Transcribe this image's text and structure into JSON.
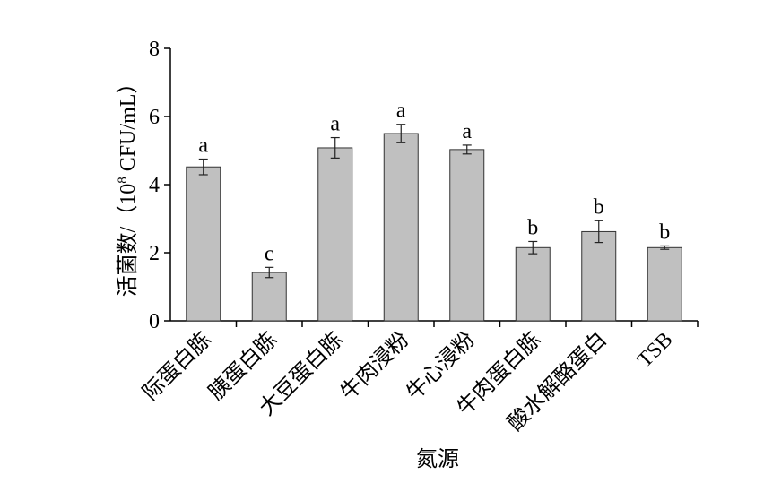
{
  "chart_data": {
    "type": "bar",
    "categories": [
      "际蛋白胨",
      "胰蛋白胨",
      "大豆蛋白胨",
      "牛肉浸粉",
      "牛心浸粉",
      "牛肉蛋白胨",
      "酸水解酪蛋白",
      "TSB"
    ],
    "values": [
      4.52,
      1.42,
      5.08,
      5.5,
      5.03,
      2.15,
      2.62,
      2.15
    ],
    "errors": [
      0.23,
      0.15,
      0.3,
      0.27,
      0.13,
      0.18,
      0.32,
      0.05
    ],
    "letters": [
      "a",
      "c",
      "a",
      "a",
      "a",
      "b",
      "b",
      "b"
    ],
    "color": "#c0c0c0",
    "x_label": "氮源",
    "y_label": {
      "prefix": "活菌数/（10",
      "sup": "8",
      "suffix": " CFU/mL）"
    },
    "ylim": [
      0,
      8
    ],
    "yticks": [
      0,
      2,
      4,
      6,
      8
    ]
  }
}
